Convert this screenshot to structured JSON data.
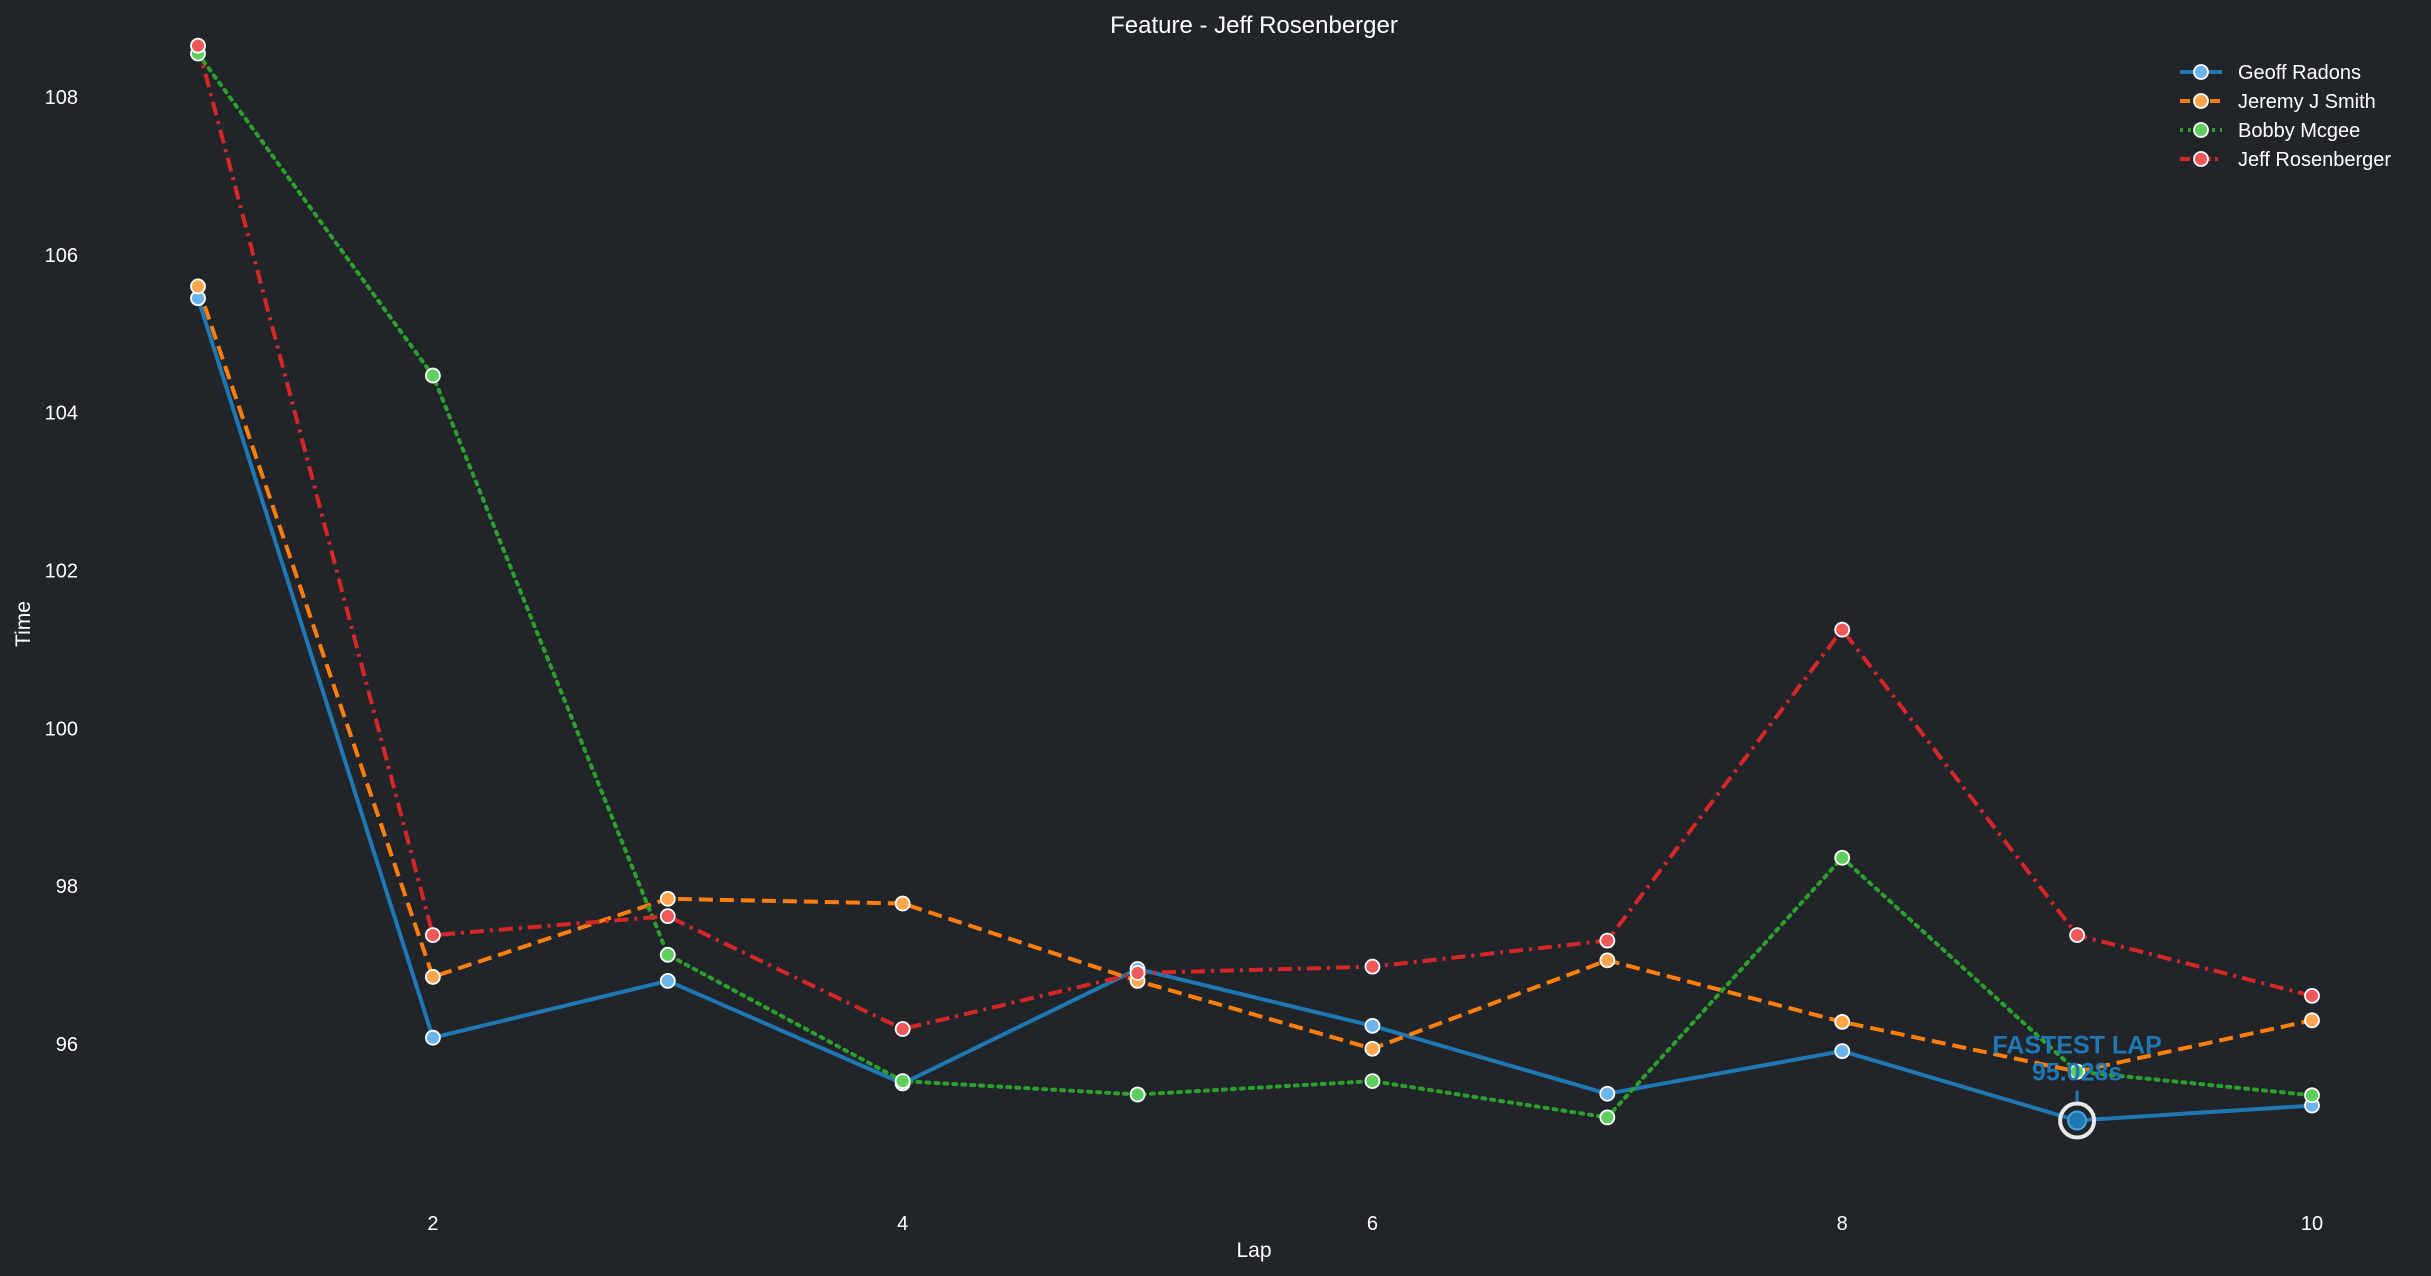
{
  "chart_data": {
    "type": "line",
    "title": "Feature - Jeff Rosenberger",
    "xlabel": "Lap",
    "ylabel": "Time",
    "xlim": [
      1,
      10
    ],
    "ylim": [
      93.0,
      108.6
    ],
    "xticks": [
      2,
      4,
      6,
      8,
      10
    ],
    "yticks": [
      96,
      98,
      100,
      102,
      104,
      106,
      108
    ],
    "grid": false,
    "legend_position": "top-right",
    "x": [
      1,
      2,
      3,
      4,
      5,
      6,
      7,
      8,
      9,
      10
    ],
    "series": [
      {
        "name": "Geoff Radons",
        "color": "#1f77b4",
        "marker_fill": "#6cb4ee",
        "dash": "solid",
        "values": [
          105.45,
          96.08,
          96.8,
          95.5,
          96.95,
          96.23,
          95.37,
          95.91,
          95.03,
          95.22
        ]
      },
      {
        "name": "Jeremy J Smith",
        "color": "#ff7f0e",
        "marker_fill": "#ffa54d",
        "dash": "dashed",
        "values": [
          105.6,
          96.85,
          97.84,
          97.78,
          96.8,
          95.94,
          97.06,
          96.28,
          95.65,
          96.3
        ]
      },
      {
        "name": "Bobby Mcgee",
        "color": "#2ca02c",
        "marker_fill": "#5ecf5e",
        "dash": "dotted",
        "values": [
          108.55,
          104.47,
          97.13,
          95.53,
          95.36,
          95.53,
          95.07,
          98.36,
          95.65,
          95.35
        ]
      },
      {
        "name": "Jeff Rosenberger",
        "color": "#d62728",
        "marker_fill": "#f0595a",
        "dash": "dashdot",
        "values": [
          108.65,
          97.38,
          97.62,
          96.19,
          96.9,
          96.98,
          97.31,
          101.25,
          97.38,
          96.61
        ]
      }
    ],
    "annotation": {
      "label": "FASTEST LAP",
      "value_text": "95.028s",
      "x": 9,
      "y": 95.03,
      "color": "#1f77b4"
    }
  }
}
